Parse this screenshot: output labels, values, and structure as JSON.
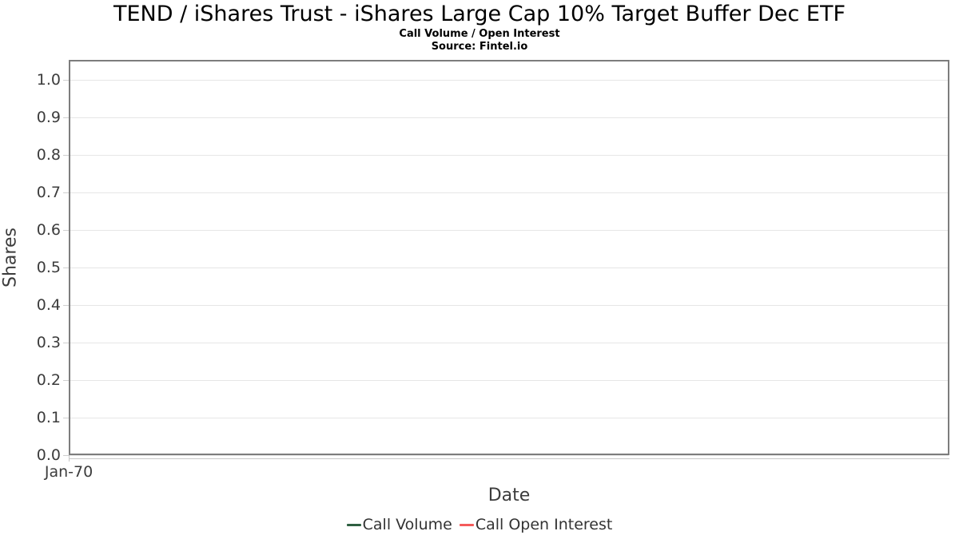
{
  "header": {
    "title": "TEND / iShares Trust - iShares Large Cap 10% Target Buffer Dec ETF",
    "subtitle": "Call Volume / Open Interest",
    "source": "Source: Fintel.io"
  },
  "chart_data": {
    "type": "line",
    "title": "TEND / iShares Trust - iShares Large Cap 10% Target Buffer Dec ETF",
    "subtitle": "Call Volume / Open Interest",
    "source": "Source: Fintel.io",
    "xlabel": "Date",
    "ylabel": "Shares",
    "ylim": [
      0.0,
      1.05
    ],
    "yticks": [
      0.0,
      0.1,
      0.2,
      0.3,
      0.4,
      0.5,
      0.6,
      0.7,
      0.8,
      0.9,
      1.0
    ],
    "ytick_labels": [
      "0.0",
      "0.1",
      "0.2",
      "0.3",
      "0.4",
      "0.5",
      "0.6",
      "0.7",
      "0.8",
      "0.9",
      "1.0"
    ],
    "xticks": [
      "Jan-70"
    ],
    "grid": true,
    "legend_position": "bottom",
    "series": [
      {
        "name": "Call Volume",
        "color": "#2e5f41",
        "x": [],
        "values": []
      },
      {
        "name": "Call Open Interest",
        "color": "#f45b5b",
        "x": [],
        "values": []
      }
    ],
    "colors": {
      "grid": "#e6e6e6",
      "plot_border": "#7d7d7d",
      "axis_text": "#3c3c3c",
      "title_text": "#000000"
    }
  }
}
